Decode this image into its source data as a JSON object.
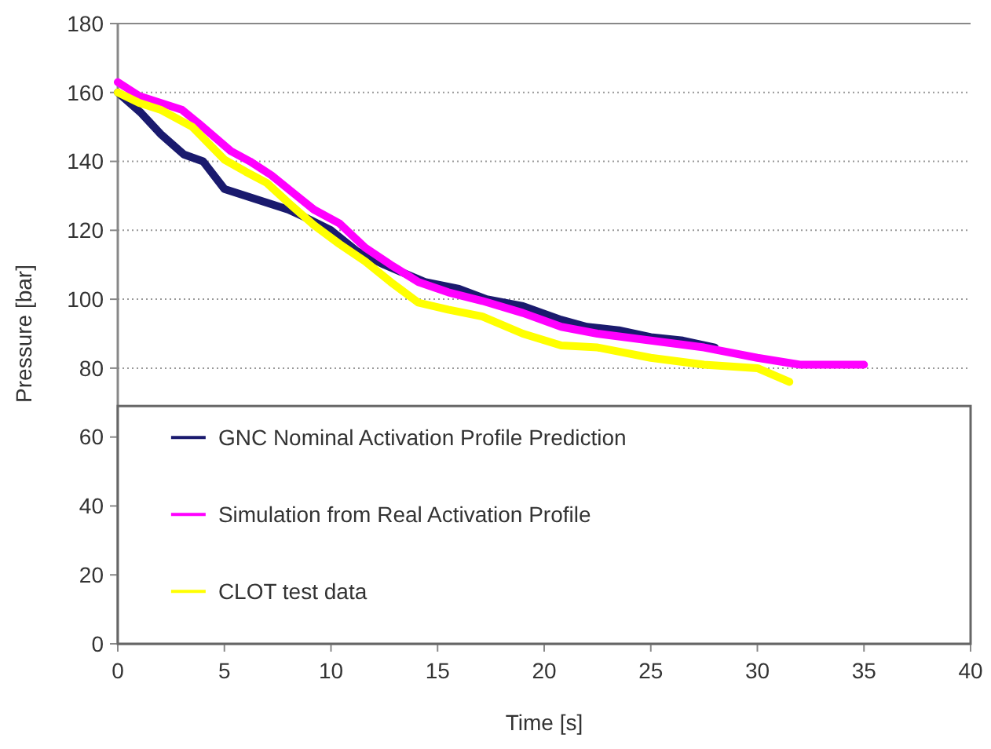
{
  "chart_data": {
    "type": "line",
    "xlabel": "Time [s]",
    "ylabel": "Pressure [bar]",
    "xlim": [
      0,
      40
    ],
    "ylim": [
      0,
      180
    ],
    "xticks": [
      0,
      5,
      10,
      15,
      20,
      25,
      30,
      35,
      40
    ],
    "yticks": [
      0,
      20,
      40,
      60,
      80,
      100,
      120,
      140,
      160,
      180
    ],
    "grid": "y",
    "legend": "bottom",
    "marker": "none",
    "line_style": "solid",
    "series": [
      {
        "name": "GNC Nominal Activation Profile Prediction",
        "color": "#1a1a6e",
        "x": [
          0,
          1.1,
          2,
          3.1,
          4,
          5,
          6,
          7,
          8,
          8.7,
          10,
          11.2,
          12.5,
          14.4,
          16,
          17.3,
          19,
          20.8,
          22,
          23.5,
          25,
          26.5,
          28
        ],
        "values": [
          160,
          154,
          148,
          142,
          140,
          132,
          130,
          128,
          126,
          124,
          120,
          114,
          110,
          105,
          103,
          100,
          98,
          94,
          92,
          91,
          89,
          88,
          86
        ]
      },
      {
        "name": "Simulation from Real Activation Profile",
        "color": "#ff00ff",
        "x": [
          0,
          1,
          2,
          3,
          3.8,
          5.3,
          6.2,
          7.2,
          8.2,
          9.2,
          10.4,
          11.6,
          12.8,
          14.1,
          15.5,
          17.1,
          19,
          20.8,
          22.5,
          25,
          27.5,
          30,
          32,
          33.5,
          35
        ],
        "values": [
          163,
          159,
          157,
          155,
          151,
          143,
          140,
          136,
          131,
          126,
          122,
          115,
          110,
          105,
          102,
          99.5,
          96,
          92,
          90,
          88,
          86,
          83,
          81,
          81,
          81
        ]
      },
      {
        "name": "CLOT test data",
        "color": "#ffff00",
        "x": [
          0,
          1,
          2,
          3.5,
          5,
          6,
          7,
          8,
          9.2,
          10.4,
          11.6,
          12.8,
          14.1,
          15.5,
          17.1,
          19,
          20.8,
          22.5,
          25,
          27.5,
          30,
          31.5
        ],
        "values": [
          160,
          157,
          155,
          150,
          140.5,
          137,
          133.7,
          128,
          121.5,
          116,
          111,
          105,
          99,
          97,
          95,
          90,
          86.6,
          86,
          83,
          81,
          80,
          76
        ]
      }
    ]
  }
}
